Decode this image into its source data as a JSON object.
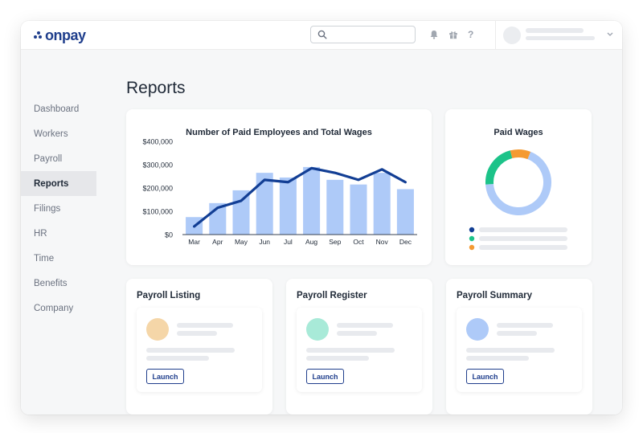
{
  "app": {
    "logo_text": "onpay"
  },
  "header": {
    "search": {
      "placeholder": ""
    },
    "icons": [
      "bell-icon",
      "gift-icon",
      "help-icon"
    ],
    "help_label": "?"
  },
  "sidebar": {
    "items": [
      {
        "label": "Dashboard",
        "active": false
      },
      {
        "label": "Workers",
        "active": false
      },
      {
        "label": "Payroll",
        "active": false
      },
      {
        "label": "Reports",
        "active": true
      },
      {
        "label": "Filings",
        "active": false
      },
      {
        "label": "HR",
        "active": false
      },
      {
        "label": "Time",
        "active": false
      },
      {
        "label": "Benefits",
        "active": false
      },
      {
        "label": "Company",
        "active": false
      }
    ]
  },
  "main": {
    "title": "Reports",
    "report_cards": [
      {
        "title": "Payroll Listing",
        "launch_label": "Launch",
        "avatar_color": "#f5d6a8"
      },
      {
        "title": "Payroll Register",
        "launch_label": "Launch",
        "avatar_color": "#a8ead8"
      },
      {
        "title": "Payroll Summary",
        "launch_label": "Launch",
        "avatar_color": "#aecaf8"
      }
    ]
  },
  "colors": {
    "brand": "#1f3e8c",
    "bar": "#aecaf8",
    "line": "#123e94",
    "light_blue": "#aecaf8",
    "green": "#1cc389",
    "orange": "#f49a32"
  },
  "chart_data": [
    {
      "type": "bar",
      "title": "Number of Paid Employees and Total Wages",
      "categories": [
        "Mar",
        "Apr",
        "May",
        "Jun",
        "Jul",
        "Aug",
        "Sep",
        "Oct",
        "Nov",
        "Dec"
      ],
      "ylim": [
        0,
        400000
      ],
      "yticks": [
        0,
        100000,
        200000,
        300000,
        400000
      ],
      "ytick_labels": [
        "$0",
        "$100,000",
        "$200,000",
        "$300,000",
        "$400,000"
      ],
      "grid": false,
      "series": [
        {
          "kind": "bar",
          "values": [
            75000,
            135000,
            190000,
            265000,
            245000,
            290000,
            235000,
            215000,
            265000,
            195000
          ]
        },
        {
          "kind": "line",
          "values": [
            35000,
            115000,
            145000,
            235000,
            225000,
            285000,
            265000,
            235000,
            280000,
            225000
          ]
        }
      ]
    },
    {
      "type": "pie",
      "title": "Paid Wages",
      "donut": true,
      "slices": [
        {
          "value": 68,
          "color": "#aecaf8"
        },
        {
          "value": 22,
          "color": "#1cc389"
        },
        {
          "value": 10,
          "color": "#f49a32"
        }
      ],
      "legend": [
        {
          "color": "#123e94"
        },
        {
          "color": "#1cc389"
        },
        {
          "color": "#f49a32"
        }
      ]
    }
  ]
}
